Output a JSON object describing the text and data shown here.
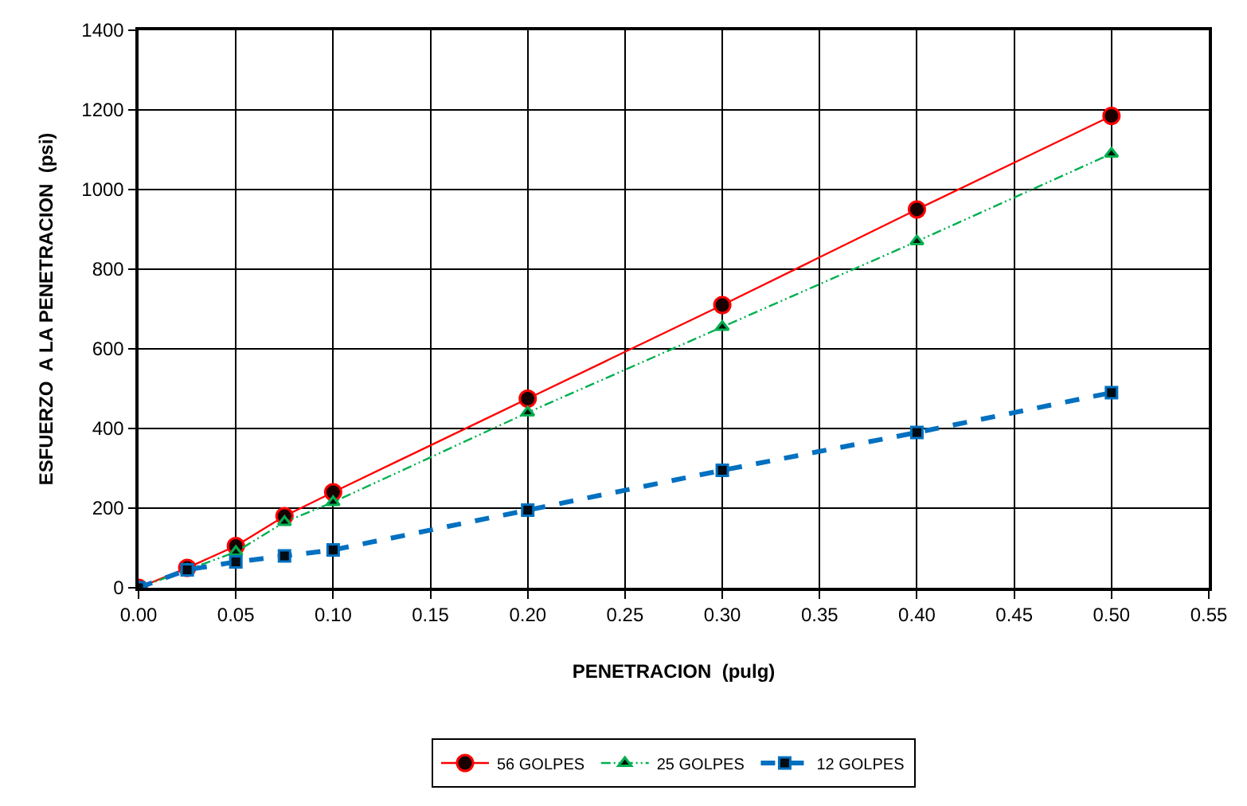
{
  "chart_data": {
    "type": "line",
    "xlabel": "PENETRACION  (pulg)",
    "ylabel": "ESFUERZO  A LA PENETRACION  (psi)",
    "x": [
      0,
      0.025,
      0.05,
      0.075,
      0.1,
      0.2,
      0.3,
      0.4,
      0.5
    ],
    "series": [
      {
        "name": "56 GOLPES",
        "color": "#ff0000",
        "marker": "circle",
        "line_style": "solid",
        "values": [
          0,
          50,
          105,
          180,
          240,
          475,
          710,
          950,
          1185
        ]
      },
      {
        "name": "25 GOLPES",
        "color": "#00b050",
        "marker": "triangle",
        "line_style": "dashed",
        "values": [
          0,
          45,
          90,
          165,
          215,
          440,
          655,
          870,
          1090
        ]
      },
      {
        "name": "12 GOLPES",
        "color": "#0070c0",
        "marker": "square",
        "line_style": "dashed",
        "values": [
          0,
          45,
          65,
          80,
          95,
          195,
          295,
          390,
          490
        ]
      }
    ],
    "xlim": [
      0,
      0.55
    ],
    "xticks": [
      {
        "value": 0,
        "label": "0.00"
      },
      {
        "value": 0.05,
        "label": "0.05"
      },
      {
        "value": 0.1,
        "label": "0.10"
      },
      {
        "value": 0.15,
        "label": "0.15"
      },
      {
        "value": 0.2,
        "label": "0.20"
      },
      {
        "value": 0.25,
        "label": "0.25"
      },
      {
        "value": 0.3,
        "label": "0.30"
      },
      {
        "value": 0.35,
        "label": "0.35"
      },
      {
        "value": 0.4,
        "label": "0.40"
      },
      {
        "value": 0.45,
        "label": "0.45"
      },
      {
        "value": 0.5,
        "label": "0.50"
      },
      {
        "value": 0.55,
        "label": "0.55"
      }
    ],
    "ylim": [
      0,
      1400
    ],
    "yticks": [
      0,
      200,
      400,
      600,
      800,
      1000,
      1200,
      1400
    ],
    "grid": true,
    "legend": "bottom"
  }
}
